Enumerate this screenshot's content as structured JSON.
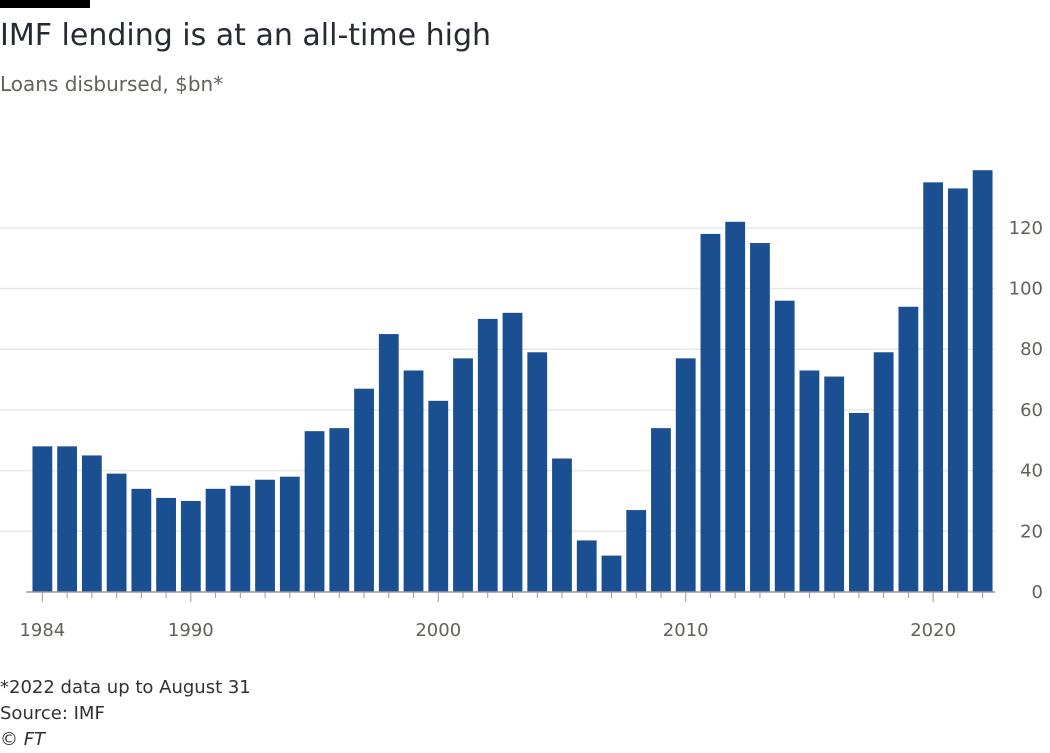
{
  "header": {
    "title": "IMF lending is at an all-time high",
    "subtitle": "Loans disbursed, $bn*"
  },
  "footer": {
    "note": "*2022 data up to August 31",
    "source": "Source: IMF",
    "copyright": "© FT"
  },
  "colors": {
    "bar": "#1a4f91",
    "grid": "#e8e8e8",
    "axis": "#999999",
    "tick_text": "#66605c"
  },
  "chart_data": {
    "type": "bar",
    "title": "IMF lending is at an all-time high",
    "subtitle": "Loans disbursed, $bn*",
    "categories": [
      1984,
      1985,
      1986,
      1987,
      1988,
      1989,
      1990,
      1991,
      1992,
      1993,
      1994,
      1995,
      1996,
      1997,
      1998,
      1999,
      2000,
      2001,
      2002,
      2003,
      2004,
      2005,
      2006,
      2007,
      2008,
      2009,
      2010,
      2011,
      2012,
      2013,
      2014,
      2015,
      2016,
      2017,
      2018,
      2019,
      2020,
      2021,
      2022
    ],
    "values": [
      48,
      48,
      45,
      39,
      34,
      31,
      30,
      34,
      35,
      37,
      38,
      53,
      54,
      67,
      85,
      73,
      63,
      77,
      90,
      92,
      79,
      44,
      17,
      12,
      27,
      54,
      77,
      118,
      122,
      115,
      96,
      73,
      71,
      59,
      79,
      94,
      135,
      133,
      139
    ],
    "x_tick_labels": [
      "1984",
      "1990",
      "2000",
      "2010",
      "2020"
    ],
    "y_ticks": [
      0,
      20,
      40,
      60,
      80,
      100,
      120
    ],
    "ylim": [
      0,
      145
    ],
    "y_axis_position": "right",
    "grid": true,
    "legend": "none"
  }
}
